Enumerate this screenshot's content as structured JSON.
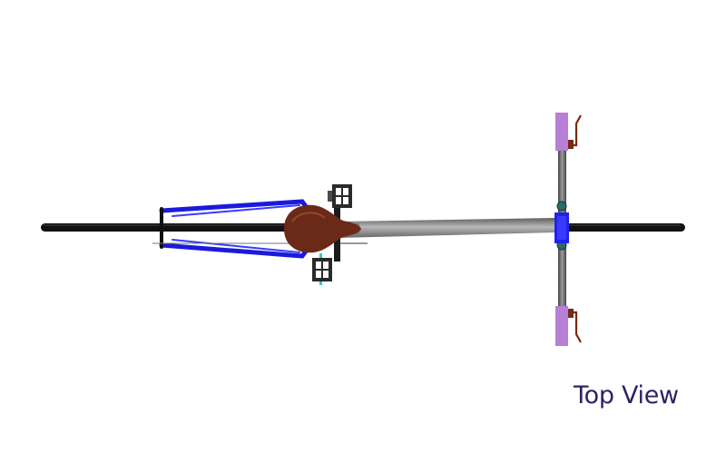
{
  "figure": {
    "label": "Top View"
  },
  "colors": {
    "background": "#ffffff",
    "label_text": "#2b2466",
    "tire": "#111111",
    "frame_tube": "#8a8a8a",
    "rear_stays": "#1a1adb",
    "saddle": "#6b2a18",
    "grips": "#b77fd6",
    "brake_levers": "#7a2a12",
    "stem_clamp": "#2222e6",
    "pedals": "#2a2a2a"
  },
  "icons": {
    "bicycle": "bicycle-top-view-icon"
  }
}
